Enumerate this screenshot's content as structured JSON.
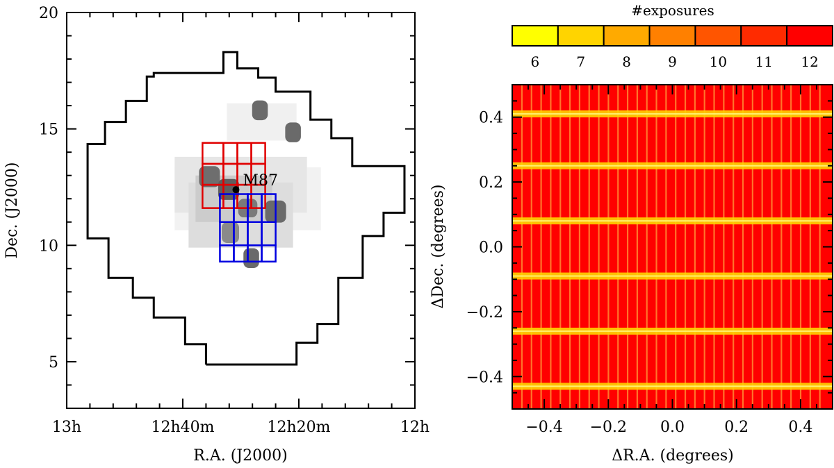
{
  "chart_data": [
    {
      "type": "map",
      "name": "virgo-footprint",
      "xlabel": "R.A. (J2000)",
      "ylabel": "Dec. (J2000)",
      "xlim_hours": [
        13.0,
        12.0
      ],
      "ylim_deg": [
        3.0,
        20.0
      ],
      "x_ticks": [
        {
          "value": 13.0,
          "label": "13h"
        },
        {
          "value": 12.6666667,
          "label": "12h40m"
        },
        {
          "value": 12.3333333,
          "label": "12h20m"
        },
        {
          "value": 12.0,
          "label": "12h"
        }
      ],
      "x_minor_ticks": [
        12.9333333,
        12.8666667,
        12.8,
        12.7333333,
        12.6,
        12.5333333,
        12.4666667,
        12.4,
        12.2666667,
        12.2,
        12.1333333,
        12.0666667
      ],
      "y_ticks": [
        {
          "value": 5,
          "label": "5"
        },
        {
          "value": 10,
          "label": "10"
        },
        {
          "value": 15,
          "label": "15"
        },
        {
          "value": 20,
          "label": "20"
        }
      ],
      "y_minor_ticks": [
        4,
        6,
        7,
        8,
        9,
        11,
        12,
        13,
        14,
        16,
        17,
        18,
        19
      ],
      "survey_outline": [
        [
          12.6,
          4.88
        ],
        [
          12.34,
          4.88
        ],
        [
          12.34,
          5.82
        ],
        [
          12.28,
          5.82
        ],
        [
          12.28,
          6.62
        ],
        [
          12.22,
          6.62
        ],
        [
          12.22,
          8.6
        ],
        [
          12.15,
          8.6
        ],
        [
          12.15,
          10.4
        ],
        [
          12.09,
          10.4
        ],
        [
          12.09,
          11.4
        ],
        [
          12.03,
          11.4
        ],
        [
          12.03,
          13.4
        ],
        [
          12.18,
          13.4
        ],
        [
          12.18,
          14.6
        ],
        [
          12.24,
          14.6
        ],
        [
          12.24,
          15.4
        ],
        [
          12.3,
          15.4
        ],
        [
          12.3,
          16.6
        ],
        [
          12.4,
          16.6
        ],
        [
          12.4,
          17.2
        ],
        [
          12.45,
          17.2
        ],
        [
          12.45,
          17.6
        ],
        [
          12.51,
          17.6
        ],
        [
          12.51,
          18.3
        ],
        [
          12.55,
          18.3
        ],
        [
          12.55,
          17.4
        ],
        [
          12.75,
          17.4
        ],
        [
          12.75,
          17.25
        ],
        [
          12.77,
          17.25
        ],
        [
          12.77,
          16.2
        ],
        [
          12.83,
          16.2
        ],
        [
          12.83,
          15.3
        ],
        [
          12.89,
          15.3
        ],
        [
          12.89,
          14.35
        ],
        [
          12.94,
          14.35
        ],
        [
          12.94,
          10.3
        ],
        [
          12.88,
          10.3
        ],
        [
          12.88,
          8.6
        ],
        [
          12.81,
          8.6
        ],
        [
          12.81,
          7.75
        ],
        [
          12.75,
          7.75
        ],
        [
          12.75,
          6.9
        ],
        [
          12.66,
          6.9
        ],
        [
          12.66,
          5.75
        ],
        [
          12.6,
          5.75
        ],
        [
          12.6,
          4.88
        ]
      ],
      "gray_patches": [
        {
          "ra": 12.59,
          "dec": 12.95,
          "w": 0.06,
          "h": 0.9,
          "shade": "#6e6e6e"
        },
        {
          "ra": 12.535,
          "dec": 12.4,
          "w": 0.06,
          "h": 0.9,
          "shade": "#5f5f5f"
        },
        {
          "ra": 12.48,
          "dec": 11.6,
          "w": 0.055,
          "h": 0.8,
          "shade": "#7a7a7a"
        },
        {
          "ra": 12.4,
          "dec": 11.45,
          "w": 0.06,
          "h": 0.95,
          "shade": "#6a6a6a"
        },
        {
          "ra": 12.445,
          "dec": 15.8,
          "w": 0.045,
          "h": 0.85,
          "shade": "#6a6a6a"
        },
        {
          "ra": 12.35,
          "dec": 14.85,
          "w": 0.045,
          "h": 0.85,
          "shade": "#6a6a6a"
        },
        {
          "ra": 12.47,
          "dec": 9.45,
          "w": 0.045,
          "h": 0.85,
          "shade": "#6a6a6a"
        },
        {
          "ra": 12.53,
          "dec": 10.55,
          "w": 0.05,
          "h": 0.9,
          "shade": "#8a8a8a"
        }
      ],
      "light_patches": [
        {
          "ra": 12.48,
          "dec": 12.0,
          "w": 0.42,
          "h": 2.7,
          "shade": "#f2f2f2"
        },
        {
          "ra": 12.5,
          "dec": 12.6,
          "w": 0.38,
          "h": 2.4,
          "shade": "#e6e6e6"
        },
        {
          "ra": 12.5,
          "dec": 11.3,
          "w": 0.3,
          "h": 2.8,
          "shade": "#dddddd"
        },
        {
          "ra": 12.52,
          "dec": 12.0,
          "w": 0.22,
          "h": 2.0,
          "shade": "#cccccc"
        },
        {
          "ra": 12.44,
          "dec": 15.3,
          "w": 0.2,
          "h": 1.6,
          "shade": "#f0f0f0"
        }
      ],
      "red_grid": {
        "ra_edges": [
          12.61,
          12.55,
          12.51,
          12.47,
          12.43
        ],
        "dec_edges": [
          11.6,
          12.6,
          13.5,
          14.4
        ],
        "color": "#e00000"
      },
      "blue_grid": {
        "ra_edges": [
          12.56,
          12.52,
          12.48,
          12.44,
          12.4
        ],
        "dec_edges": [
          9.3,
          10.0,
          11.0,
          12.2
        ],
        "color": "#0000e0"
      },
      "marker": {
        "label": "M87",
        "ra": 12.514,
        "dec": 12.39
      }
    },
    {
      "type": "heatmap",
      "name": "exposure-map",
      "xlabel": "ΔR.A. (degrees)",
      "ylabel": "ΔDec. (degrees)",
      "xlim": [
        -0.5,
        0.5
      ],
      "ylim": [
        -0.5,
        0.5
      ],
      "x_ticks": [
        -0.4,
        -0.2,
        0.0,
        0.2,
        0.4
      ],
      "x_tick_labels": [
        "−0.4",
        "−0.2",
        "0.0",
        "0.2",
        "0.4"
      ],
      "y_ticks": [
        -0.4,
        -0.2,
        0.0,
        0.2,
        0.4
      ],
      "y_tick_labels": [
        "−0.4",
        "−0.2",
        "0.0",
        "0.2",
        "0.4"
      ],
      "base_exposures": 12,
      "vertical_bands": [
        -0.47,
        -0.44,
        -0.41,
        -0.38,
        -0.35,
        -0.32,
        -0.29,
        -0.26,
        -0.23,
        -0.2,
        -0.17,
        -0.14,
        -0.11,
        -0.08,
        -0.05,
        -0.02,
        0.01,
        0.04,
        0.07,
        0.1,
        0.13,
        0.16,
        0.19,
        0.22,
        0.25,
        0.28,
        0.31,
        0.34,
        0.37,
        0.4,
        0.43,
        0.46
      ],
      "horizontal_bands": [
        0.41,
        0.25,
        0.08,
        -0.09,
        -0.26,
        -0.43
      ],
      "horizontal_band_exposures": 7,
      "colorbar": {
        "title": "#exposures",
        "levels": [
          6,
          7,
          8,
          9,
          10,
          11,
          12
        ],
        "labels": [
          "6",
          "7",
          "8",
          "9",
          "10",
          "11",
          "12"
        ],
        "colors": [
          "#ffff00",
          "#ffd400",
          "#ffaa00",
          "#ff8000",
          "#ff5500",
          "#ff2b00",
          "#ff0000"
        ]
      }
    }
  ]
}
